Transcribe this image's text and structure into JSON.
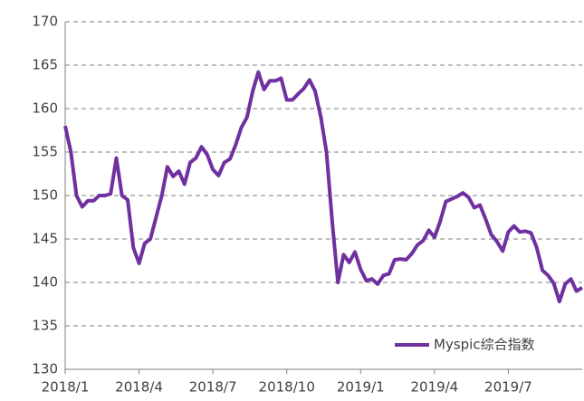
{
  "chart_data": {
    "type": "line",
    "categories": [
      "2018/1",
      null,
      null,
      null,
      null,
      null,
      null,
      null,
      null,
      null,
      null,
      null,
      null,
      "2018/4",
      null,
      null,
      null,
      null,
      null,
      null,
      null,
      null,
      null,
      null,
      null,
      null,
      "2018/7",
      null,
      null,
      null,
      null,
      null,
      null,
      null,
      null,
      null,
      null,
      null,
      null,
      "2018/10",
      null,
      null,
      null,
      null,
      null,
      null,
      null,
      null,
      null,
      null,
      null,
      null,
      "2019/1",
      null,
      null,
      null,
      null,
      null,
      null,
      null,
      null,
      null,
      null,
      null,
      null,
      "2019/4",
      null,
      null,
      null,
      null,
      null,
      null,
      null,
      null,
      null,
      null,
      null,
      null,
      "2019/7",
      null,
      null,
      null,
      null,
      null,
      null,
      null,
      null,
      null,
      null,
      null,
      null,
      null
    ],
    "series": [
      {
        "name": "Myspic综合指数",
        "color": "#7030a0",
        "values": [
          158,
          155,
          150,
          148.7,
          149.4,
          149.4,
          150,
          150,
          150.2,
          154.3,
          150,
          149.5,
          144,
          142.2,
          144.5,
          145,
          147.5,
          150,
          153.3,
          152.2,
          152.8,
          151.3,
          153.8,
          154.3,
          155.6,
          154.7,
          153,
          152.3,
          153.8,
          154.2,
          155.8,
          157.8,
          159,
          162,
          164.2,
          162.2,
          163.2,
          163.2,
          163.5,
          161,
          161,
          161.7,
          162.3,
          163.3,
          162,
          159,
          155,
          147,
          140,
          143.2,
          142.3,
          143.5,
          141.5,
          140.2,
          140.4,
          139.8,
          140.8,
          141,
          142.6,
          142.7,
          142.6,
          143.3,
          144.3,
          144.8,
          146,
          145.2,
          147,
          149.3,
          149.6,
          149.9,
          150.3,
          149.8,
          148.6,
          148.9,
          147.3,
          145.5,
          144.7,
          143.6,
          145.8,
          146.5,
          145.8,
          145.9,
          145.7,
          144,
          141.4,
          140.8,
          139.9,
          137.8,
          139.8,
          140.4,
          139,
          139.4
        ]
      }
    ],
    "ylim": [
      130,
      170
    ],
    "yticks": [
      130,
      135,
      140,
      145,
      150,
      155,
      160,
      165,
      170
    ],
    "grid": true,
    "legend": "lower right"
  }
}
